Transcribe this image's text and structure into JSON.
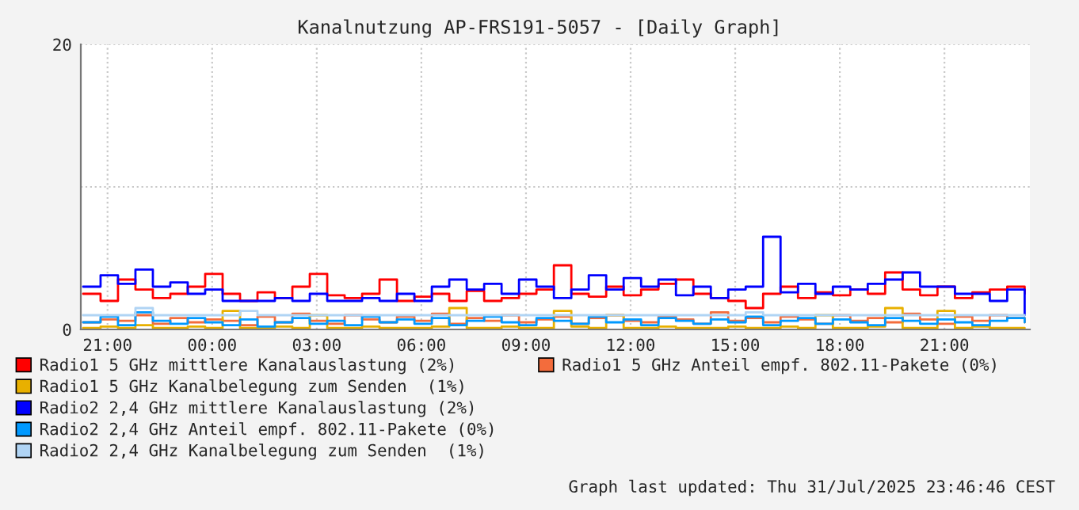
{
  "chart_data": {
    "type": "step",
    "title": "Kanalnutzung AP-FRS191-5057 - [Daily Graph]",
    "x": [
      "2025-07-30T20:18",
      "2025-07-30T20:48",
      "2025-07-30T21:18",
      "2025-07-30T21:48",
      "2025-07-30T22:18",
      "2025-07-30T22:48",
      "2025-07-30T23:18",
      "2025-07-30T23:48",
      "2025-07-31T00:18",
      "2025-07-31T00:48",
      "2025-07-31T01:18",
      "2025-07-31T01:48",
      "2025-07-31T02:18",
      "2025-07-31T02:48",
      "2025-07-31T03:18",
      "2025-07-31T03:48",
      "2025-07-31T04:18",
      "2025-07-31T04:48",
      "2025-07-31T05:18",
      "2025-07-31T05:48",
      "2025-07-31T06:18",
      "2025-07-31T06:48",
      "2025-07-31T07:18",
      "2025-07-31T07:48",
      "2025-07-31T08:18",
      "2025-07-31T08:48",
      "2025-07-31T09:18",
      "2025-07-31T09:48",
      "2025-07-31T10:18",
      "2025-07-31T10:48",
      "2025-07-31T11:18",
      "2025-07-31T11:48",
      "2025-07-31T12:18",
      "2025-07-31T12:48",
      "2025-07-31T13:18",
      "2025-07-31T13:48",
      "2025-07-31T14:18",
      "2025-07-31T14:48",
      "2025-07-31T15:18",
      "2025-07-31T15:48",
      "2025-07-31T16:18",
      "2025-07-31T16:48",
      "2025-07-31T17:18",
      "2025-07-31T17:48",
      "2025-07-31T18:18",
      "2025-07-31T18:48",
      "2025-07-31T19:18",
      "2025-07-31T19:48",
      "2025-07-31T20:18",
      "2025-07-31T20:48",
      "2025-07-31T21:18",
      "2025-07-31T21:48",
      "2025-07-31T22:18",
      "2025-07-31T22:48",
      "2025-07-31T23:18"
    ],
    "series": [
      {
        "name": "Radio1 5 GHz mittlere Kanalauslastung (2%)",
        "color": "#ff0000",
        "values": [
          2.5,
          2.0,
          3.5,
          2.8,
          2.2,
          2.5,
          3.0,
          3.9,
          2.5,
          2.0,
          2.6,
          2.2,
          3.0,
          3.9,
          2.4,
          2.2,
          2.5,
          3.5,
          2.0,
          2.3,
          2.5,
          2.0,
          2.7,
          2.0,
          2.2,
          2.5,
          2.8,
          4.5,
          2.5,
          2.3,
          3.0,
          2.4,
          2.8,
          3.2,
          3.5,
          2.5,
          2.2,
          2.0,
          1.5,
          2.5,
          3.0,
          2.2,
          2.6,
          2.4,
          2.8,
          2.5,
          4.0,
          2.8,
          2.4,
          3.0,
          2.2,
          2.6,
          2.8,
          3.0,
          2.5
        ]
      },
      {
        "name": "Radio1 5 GHz Anteil empf. 802.11-Pakete (0%)",
        "color": "#f36c3c",
        "values": [
          0.5,
          0.7,
          0.6,
          1.0,
          0.4,
          0.8,
          0.5,
          0.7,
          0.6,
          0.3,
          0.9,
          0.5,
          1.1,
          0.6,
          0.4,
          1.0,
          0.7,
          0.5,
          0.9,
          0.6,
          1.1,
          0.4,
          0.8,
          0.6,
          1.0,
          0.5,
          0.7,
          0.9,
          0.4,
          0.8,
          1.0,
          0.6,
          0.5,
          0.9,
          0.7,
          0.4,
          1.2,
          0.6,
          0.8,
          0.5,
          0.9,
          0.7,
          0.4,
          1.0,
          0.6,
          0.8,
          0.5,
          1.1,
          0.7,
          0.4,
          0.9,
          0.6,
          1.0,
          0.8,
          0.5
        ]
      },
      {
        "name": "Radio1 5 GHz Kanalbelegung zum Senden  (1%)",
        "color": "#e8b000",
        "values": [
          0.1,
          0.2,
          0.1,
          0.3,
          0.1,
          0.1,
          0.2,
          0.1,
          1.3,
          0.1,
          0.1,
          0.2,
          0.1,
          1.0,
          0.1,
          0.1,
          0.2,
          0.1,
          0.1,
          0.1,
          0.2,
          1.5,
          0.1,
          0.1,
          0.2,
          0.1,
          0.1,
          1.3,
          0.2,
          0.1,
          1.0,
          0.1,
          0.1,
          0.2,
          0.1,
          0.1,
          0.1,
          0.2,
          0.1,
          0.1,
          0.2,
          0.1,
          1.0,
          0.1,
          0.1,
          0.2,
          1.5,
          0.1,
          0.1,
          1.3,
          0.1,
          0.2,
          0.1,
          0.1,
          0.1
        ]
      },
      {
        "name": "Radio2 2,4 GHz mittlere Kanalauslastung (2%)",
        "color": "#0000ff",
        "values": [
          3.0,
          3.8,
          3.2,
          4.2,
          3.0,
          3.3,
          2.5,
          2.8,
          2.0,
          2.0,
          2.0,
          2.2,
          2.0,
          2.5,
          2.0,
          2.0,
          2.2,
          2.0,
          2.5,
          2.0,
          3.0,
          3.5,
          2.8,
          3.2,
          2.5,
          3.5,
          3.0,
          2.2,
          2.8,
          3.8,
          2.8,
          3.6,
          3.0,
          3.5,
          2.4,
          3.0,
          2.2,
          2.8,
          3.0,
          6.5,
          2.6,
          3.2,
          2.5,
          3.0,
          2.8,
          3.2,
          3.5,
          4.0,
          3.0,
          3.0,
          2.5,
          2.5,
          2.0,
          2.8,
          1.0
        ]
      },
      {
        "name": "Radio2 2,4 GHz Anteil empf. 802.11-Pakete (0%)",
        "color": "#0099ff",
        "values": [
          0.5,
          0.9,
          0.3,
          1.2,
          0.6,
          0.4,
          0.8,
          0.5,
          0.3,
          0.7,
          0.2,
          0.5,
          0.8,
          0.4,
          0.6,
          0.3,
          0.9,
          0.5,
          0.7,
          0.4,
          0.8,
          0.3,
          0.6,
          0.9,
          0.5,
          0.3,
          0.8,
          0.6,
          0.4,
          0.9,
          0.5,
          0.7,
          0.3,
          0.8,
          0.6,
          0.4,
          0.7,
          0.5,
          0.9,
          0.3,
          0.6,
          0.8,
          0.4,
          0.7,
          0.5,
          0.3,
          0.8,
          0.6,
          0.4,
          0.7,
          0.5,
          0.3,
          0.6,
          0.8,
          0.5
        ]
      },
      {
        "name": "Radio2 2,4 GHz Kanalbelegung zum Senden  (1%)",
        "color": "#b0d4f4",
        "values": [
          1.0,
          1.0,
          1.0,
          1.5,
          1.0,
          1.0,
          1.0,
          1.0,
          1.0,
          1.3,
          1.0,
          1.0,
          1.0,
          1.0,
          1.0,
          1.0,
          1.0,
          1.0,
          1.0,
          1.0,
          1.0,
          1.0,
          1.0,
          1.0,
          1.0,
          1.0,
          1.0,
          1.0,
          1.0,
          1.0,
          1.0,
          1.0,
          1.0,
          1.0,
          1.0,
          1.0,
          1.0,
          1.0,
          1.2,
          1.0,
          1.0,
          1.0,
          1.0,
          1.0,
          1.0,
          1.0,
          1.0,
          1.0,
          1.0,
          1.0,
          1.0,
          1.0,
          1.0,
          1.0,
          1.0
        ]
      }
    ],
    "xlim": [
      "2025-07-30T20:14",
      "2025-07-31T23:27"
    ],
    "xticks": [
      {
        "value": "2025-07-30T21:00",
        "label": "21:00"
      },
      {
        "value": "2025-07-31T00:00",
        "label": "00:00"
      },
      {
        "value": "2025-07-31T03:00",
        "label": "03:00"
      },
      {
        "value": "2025-07-31T06:00",
        "label": "06:00"
      },
      {
        "value": "2025-07-31T09:00",
        "label": "09:00"
      },
      {
        "value": "2025-07-31T12:00",
        "label": "12:00"
      },
      {
        "value": "2025-07-31T15:00",
        "label": "15:00"
      },
      {
        "value": "2025-07-31T18:00",
        "label": "18:00"
      },
      {
        "value": "2025-07-31T21:00",
        "label": "21:00"
      }
    ],
    "ylim": [
      0,
      20
    ],
    "yticks": [
      0,
      {
        "value": 10,
        "label": null
      },
      20
    ],
    "grid": true,
    "legend": "bottom",
    "annotations": [
      "Graph last updated: Thu 31/Jul/2025 23:46:46 CEST"
    ]
  }
}
